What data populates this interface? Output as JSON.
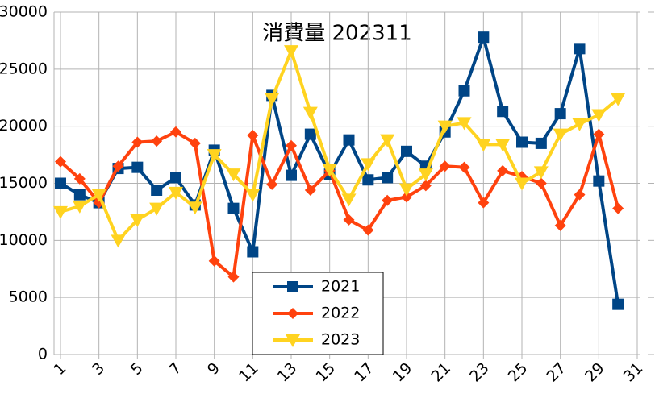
{
  "chart_data": {
    "type": "line",
    "title": "消費量 202311",
    "x": [
      1,
      2,
      3,
      4,
      5,
      6,
      7,
      8,
      9,
      10,
      11,
      12,
      13,
      14,
      15,
      16,
      17,
      18,
      19,
      20,
      21,
      22,
      23,
      24,
      25,
      26,
      27,
      28,
      29,
      30
    ],
    "xlim": [
      1,
      31
    ],
    "xticks": [
      1,
      3,
      5,
      7,
      9,
      11,
      13,
      15,
      17,
      19,
      21,
      23,
      25,
      27,
      29,
      31
    ],
    "ylim": [
      0,
      30000
    ],
    "yticks": [
      0,
      5000,
      10000,
      15000,
      20000,
      25000,
      30000
    ],
    "grid": true,
    "legend": "bottom-center",
    "series": [
      {
        "name": "2021",
        "color": "#004586",
        "marker": "square",
        "values": [
          15000,
          14000,
          13300,
          16300,
          16400,
          14400,
          15500,
          13100,
          17900,
          12800,
          9000,
          22700,
          15700,
          19300,
          15800,
          18800,
          15300,
          15500,
          17800,
          16500,
          19500,
          23100,
          27800,
          21300,
          18600,
          18500,
          21100,
          26800,
          15200,
          4400
        ]
      },
      {
        "name": "2022",
        "color": "#ff420e",
        "marker": "diamond",
        "values": [
          16900,
          15400,
          13300,
          16500,
          18600,
          18700,
          19500,
          18500,
          8200,
          6800,
          19200,
          14900,
          18300,
          14400,
          16100,
          11800,
          10900,
          13500,
          13800,
          14800,
          16500,
          16400,
          13300,
          16100,
          15600,
          15000,
          11300,
          14000,
          19300,
          12800
        ]
      },
      {
        "name": "2023",
        "color": "#ffd320",
        "marker": "triangle-down",
        "values": [
          12500,
          13000,
          14000,
          10000,
          11800,
          12800,
          14200,
          12900,
          17500,
          15800,
          14000,
          22400,
          26600,
          21200,
          16200,
          13600,
          16700,
          18800,
          14500,
          15800,
          20000,
          20300,
          18400,
          18400,
          15000,
          16000,
          19300,
          20200,
          21000,
          22400
        ]
      }
    ]
  }
}
